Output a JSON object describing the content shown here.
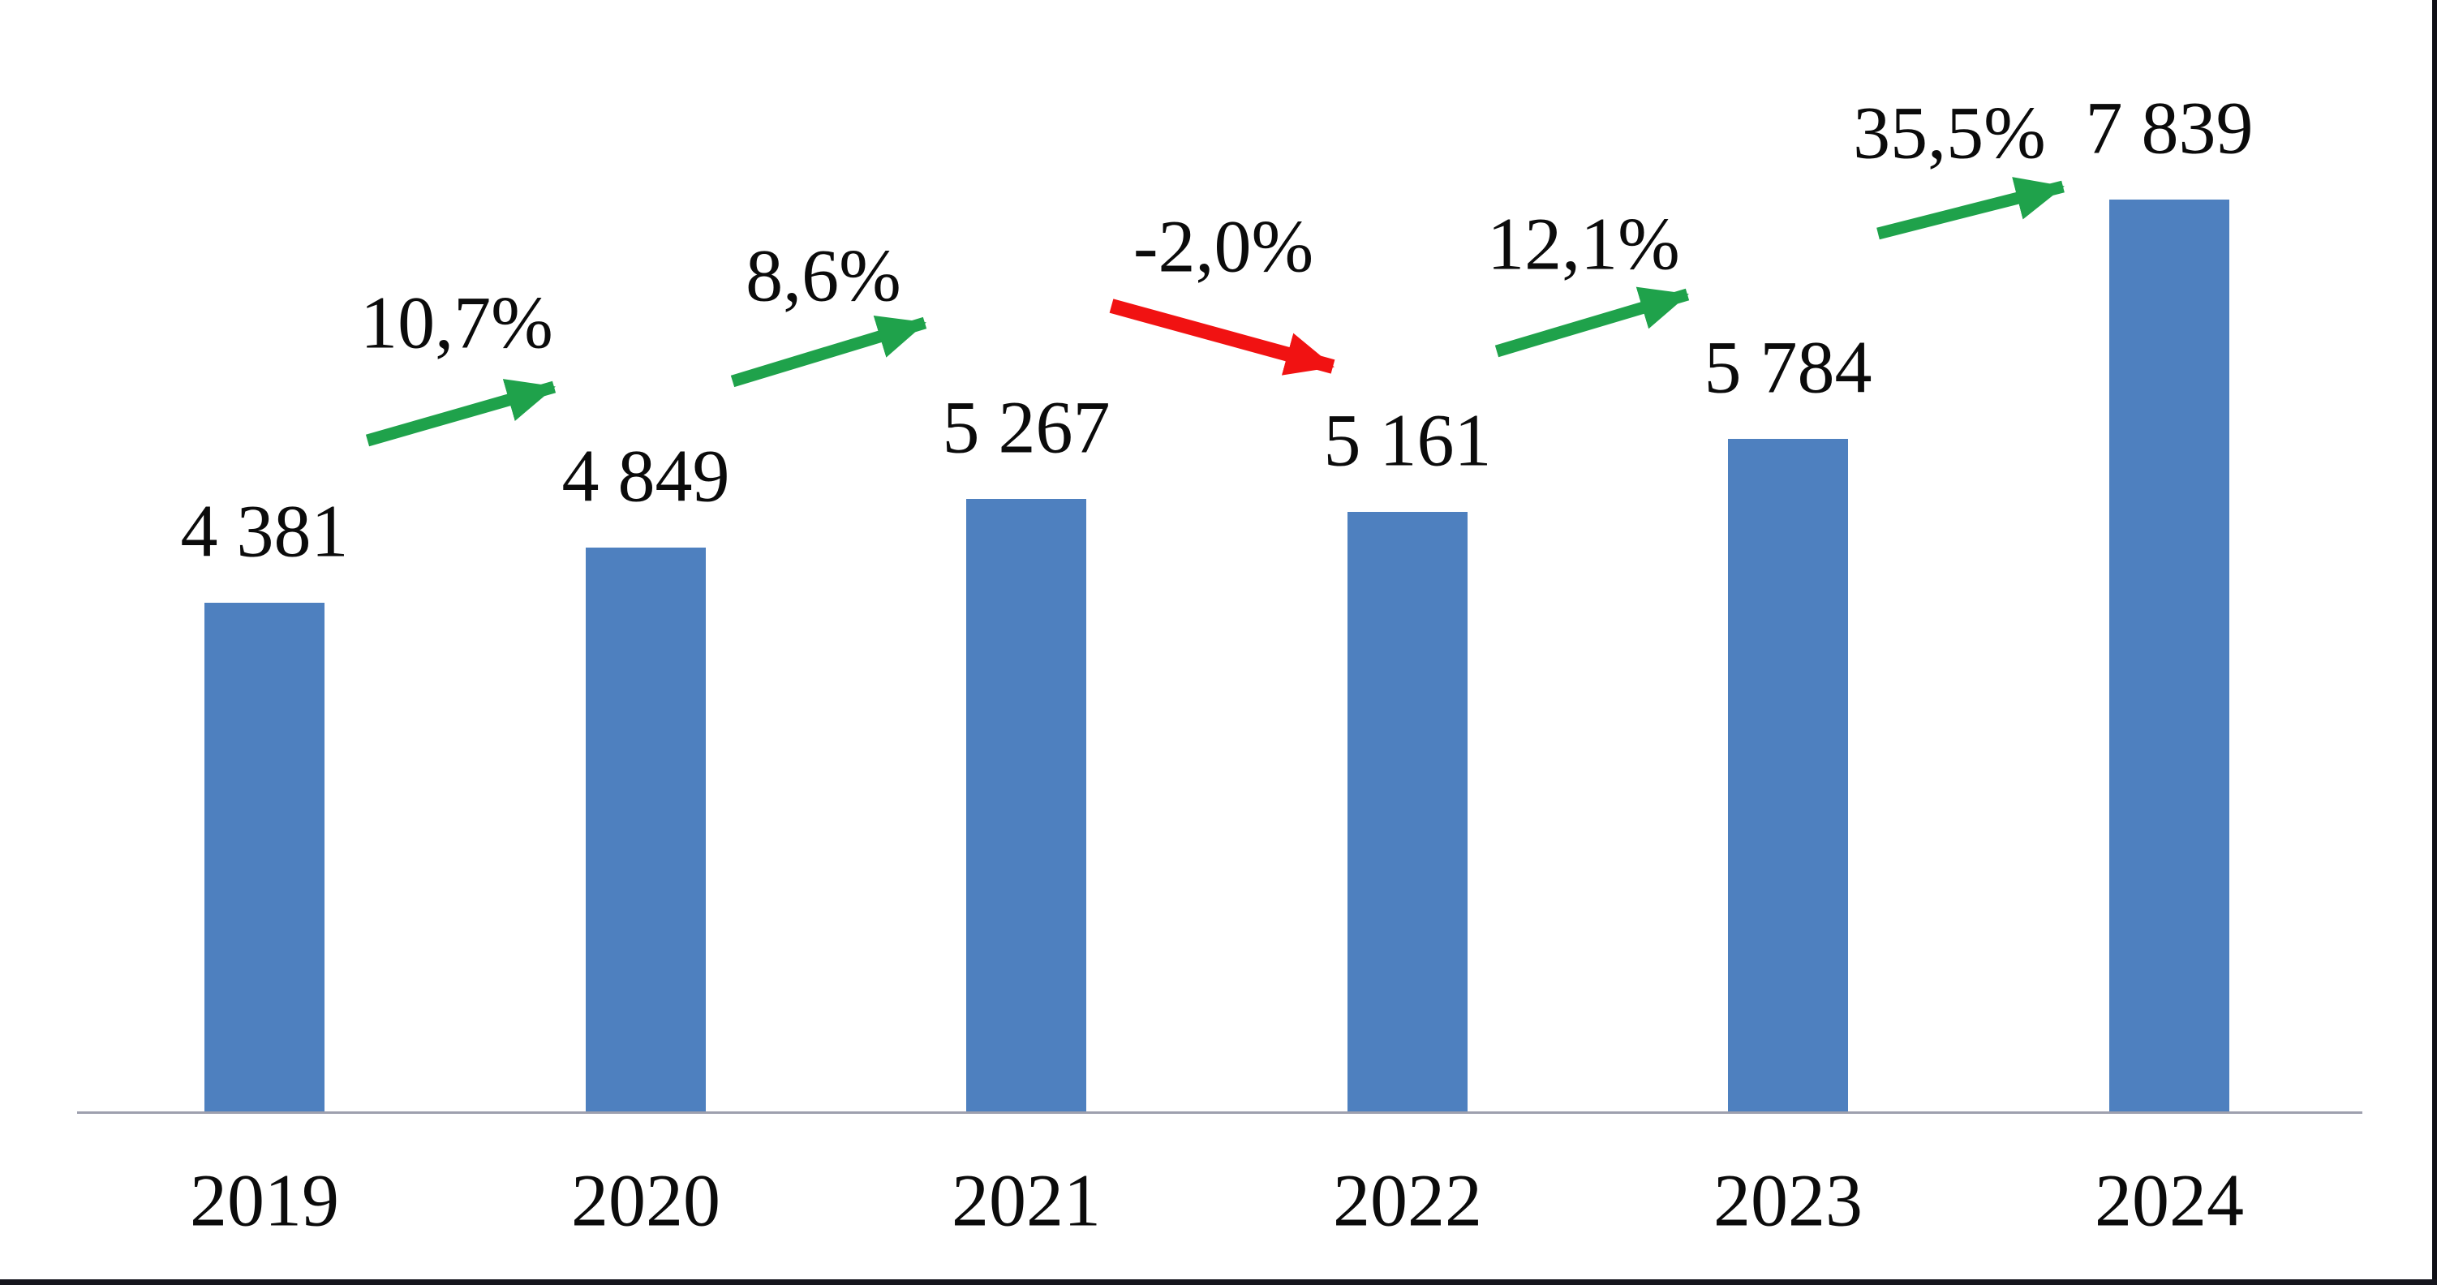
{
  "chart_data": {
    "type": "bar",
    "title": "",
    "xlabel": "",
    "ylabel": "",
    "categories": [
      "2019",
      "2020",
      "2021",
      "2022",
      "2023",
      "2024"
    ],
    "values": [
      4381,
      4849,
      5267,
      5161,
      5784,
      7839
    ],
    "value_labels": [
      "4 381",
      "4 849",
      "5 267",
      "5 161",
      "5 784",
      "7 839"
    ],
    "pct_changes": [
      {
        "from": "2019",
        "to": "2020",
        "label": "10,7%",
        "value": 10.7,
        "direction": "up"
      },
      {
        "from": "2020",
        "to": "2021",
        "label": "8,6%",
        "value": 8.6,
        "direction": "up"
      },
      {
        "from": "2021",
        "to": "2022",
        "label": "-2,0%",
        "value": -2.0,
        "direction": "down"
      },
      {
        "from": "2022",
        "to": "2023",
        "label": "12,1%",
        "value": 12.1,
        "direction": "up"
      },
      {
        "from": "2023",
        "to": "2024",
        "label": "35,5%",
        "value": 35.5,
        "direction": "up"
      }
    ],
    "ylim": [
      0,
      9551
    ],
    "grid": false,
    "legend": false,
    "colors": {
      "bar": "#4e80bf",
      "up_arrow": "#1fa24b",
      "down_arrow": "#f11212",
      "axis_line": "#9ea0ae",
      "text": "#0b0b0b"
    }
  }
}
